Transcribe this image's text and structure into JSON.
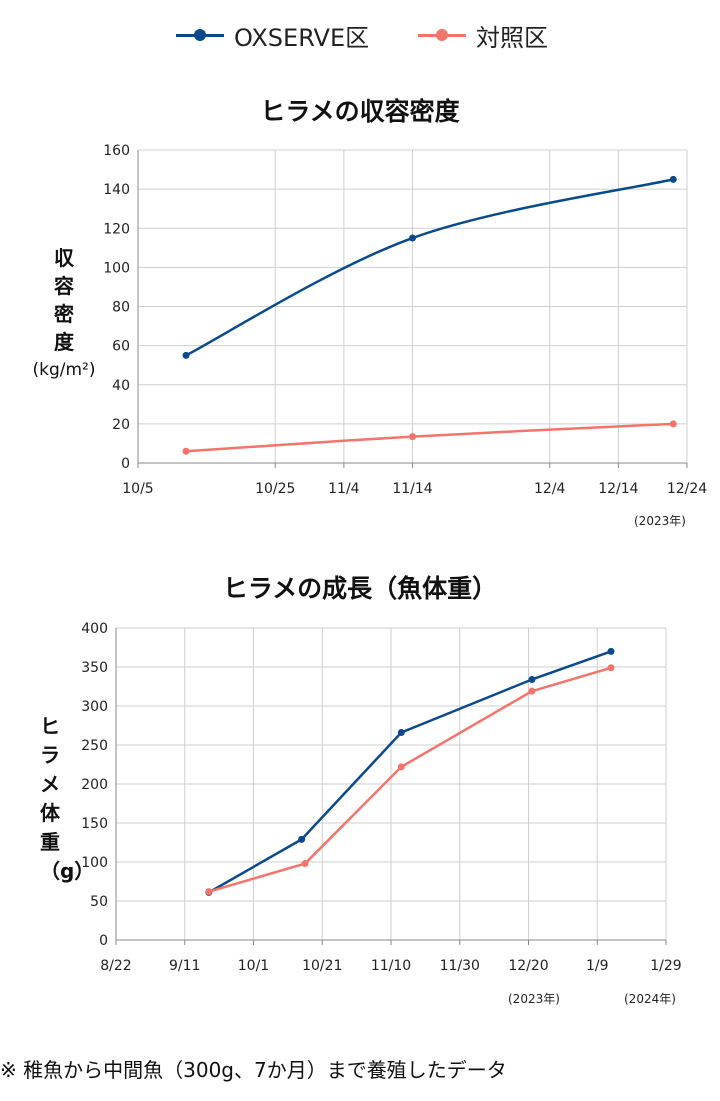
{
  "legend": [
    {
      "label": "OXSERVE区",
      "color": "#0a4a8c"
    },
    {
      "label": "対照区",
      "color": "#f4736b"
    }
  ],
  "footnote": "※ 稚魚から中間魚（300g、7か月）まで養殖したデータ",
  "chart_data": [
    {
      "type": "line",
      "title": "ヒラメの収容密度",
      "ylabel": "収容密度",
      "yunit": "(kg/m²)",
      "x_ticks": [
        "10/5",
        "10/25",
        "11/4",
        "11/14",
        "12/4",
        "12/14",
        "12/24"
      ],
      "x_tick_dates": [
        "2023-10-05",
        "2023-10-25",
        "2023-11-04",
        "2023-11-14",
        "2023-12-04",
        "2023-12-14",
        "2023-12-24"
      ],
      "x_range": [
        "2023-10-05",
        "2023-12-24"
      ],
      "year_notes": [
        "(2023年)"
      ],
      "ylim": [
        0,
        160
      ],
      "yticks": [
        0,
        20,
        40,
        60,
        80,
        100,
        120,
        140,
        160
      ],
      "grid": true,
      "smooth": true,
      "series": [
        {
          "name": "OXSERVE区",
          "color": "#0a4a8c",
          "points": [
            {
              "x": "2023-10-12",
              "y": 55
            },
            {
              "x": "2023-11-14",
              "y": 115
            },
            {
              "x": "2023-12-22",
              "y": 145
            }
          ]
        },
        {
          "name": "対照区",
          "color": "#f4736b",
          "points": [
            {
              "x": "2023-10-12",
              "y": 6
            },
            {
              "x": "2023-11-14",
              "y": 13.5
            },
            {
              "x": "2023-12-22",
              "y": 20
            }
          ]
        }
      ]
    },
    {
      "type": "line",
      "title": "ヒラメの成長（魚体重）",
      "ylabel": "ヒラメ体重（g）",
      "x_ticks": [
        "8/22",
        "9/11",
        "10/1",
        "10/21",
        "11/10",
        "11/30",
        "12/20",
        "1/9",
        "1/29"
      ],
      "x_tick_dates": [
        "2023-08-22",
        "2023-09-11",
        "2023-10-01",
        "2023-10-21",
        "2023-11-10",
        "2023-11-30",
        "2023-12-20",
        "2024-01-09",
        "2024-01-29"
      ],
      "x_range": [
        "2023-08-22",
        "2024-01-29"
      ],
      "year_notes": [
        "(2023年)",
        "(2024年)"
      ],
      "ylim": [
        0,
        400
      ],
      "yticks": [
        0,
        50,
        100,
        150,
        200,
        250,
        300,
        350,
        400
      ],
      "grid": true,
      "smooth": false,
      "series": [
        {
          "name": "OXSERVE区",
          "color": "#0a4a8c",
          "points": [
            {
              "x": "2023-09-18",
              "y": 61
            },
            {
              "x": "2023-10-15",
              "y": 129
            },
            {
              "x": "2023-11-13",
              "y": 266
            },
            {
              "x": "2023-12-21",
              "y": 334
            },
            {
              "x": "2024-01-13",
              "y": 370
            }
          ]
        },
        {
          "name": "対照区",
          "color": "#f4736b",
          "points": [
            {
              "x": "2023-09-18",
              "y": 62
            },
            {
              "x": "2023-10-16",
              "y": 98
            },
            {
              "x": "2023-11-13",
              "y": 222
            },
            {
              "x": "2023-12-21",
              "y": 319
            },
            {
              "x": "2024-01-13",
              "y": 349
            }
          ]
        }
      ]
    }
  ]
}
